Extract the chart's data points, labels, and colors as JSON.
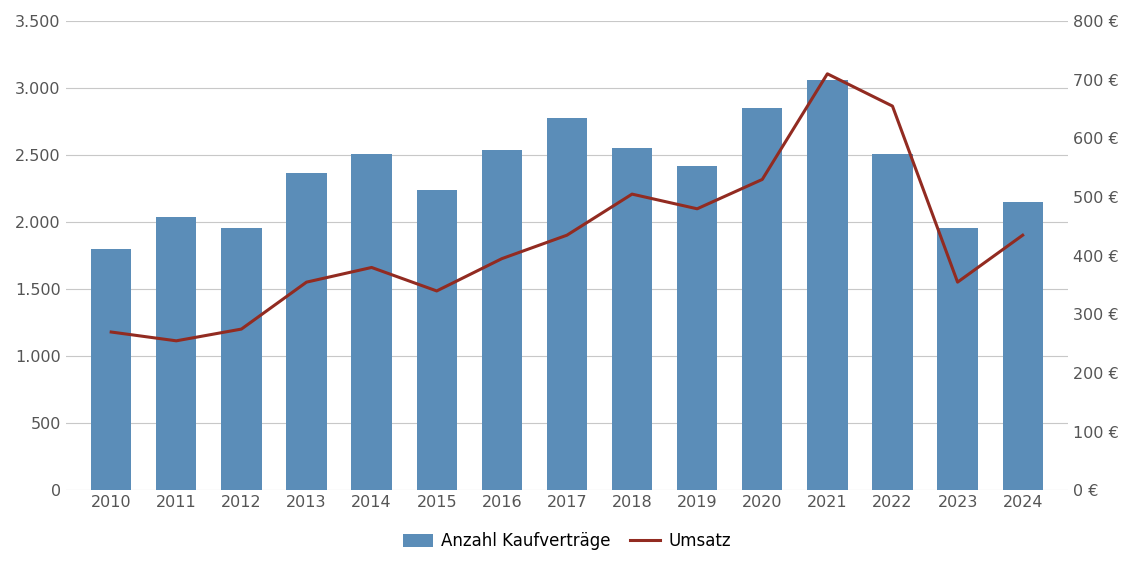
{
  "years": [
    2010,
    2011,
    2012,
    2013,
    2014,
    2015,
    2016,
    2017,
    2018,
    2019,
    2020,
    2021,
    2022,
    2023,
    2024
  ],
  "bar_values": [
    1800,
    2040,
    1960,
    2370,
    2510,
    2240,
    2540,
    2780,
    2550,
    2420,
    2850,
    3060,
    2510,
    1960,
    2150
  ],
  "line_values": [
    270,
    255,
    275,
    355,
    380,
    340,
    395,
    435,
    505,
    480,
    530,
    710,
    655,
    355,
    435
  ],
  "bar_color": "#5B8DB8",
  "line_color": "#922B21",
  "bar_label": "Anzahl Kaufverträge",
  "line_label": "Umsatz",
  "ylim_left": [
    0,
    3500
  ],
  "ylim_right": [
    0,
    800
  ],
  "yticks_left": [
    0,
    500,
    1000,
    1500,
    2000,
    2500,
    3000,
    3500
  ],
  "yticks_right": [
    0,
    100,
    200,
    300,
    400,
    500,
    600,
    700,
    800
  ],
  "ytick_labels_left": [
    "0",
    "500",
    "1.000",
    "1.500",
    "2.000",
    "2.500",
    "3.000",
    "3.500"
  ],
  "ytick_labels_right": [
    "0 €",
    "100 €",
    "200 €",
    "300 €",
    "400 €",
    "500 €",
    "600 €",
    "700 €",
    "800 €"
  ],
  "background_color": "#FFFFFF",
  "grid_color": "#C8C8C8",
  "figsize": [
    11.34,
    5.71
  ],
  "dpi": 100,
  "bar_width": 0.62,
  "font_size": 11.5,
  "legend_fontsize": 12
}
